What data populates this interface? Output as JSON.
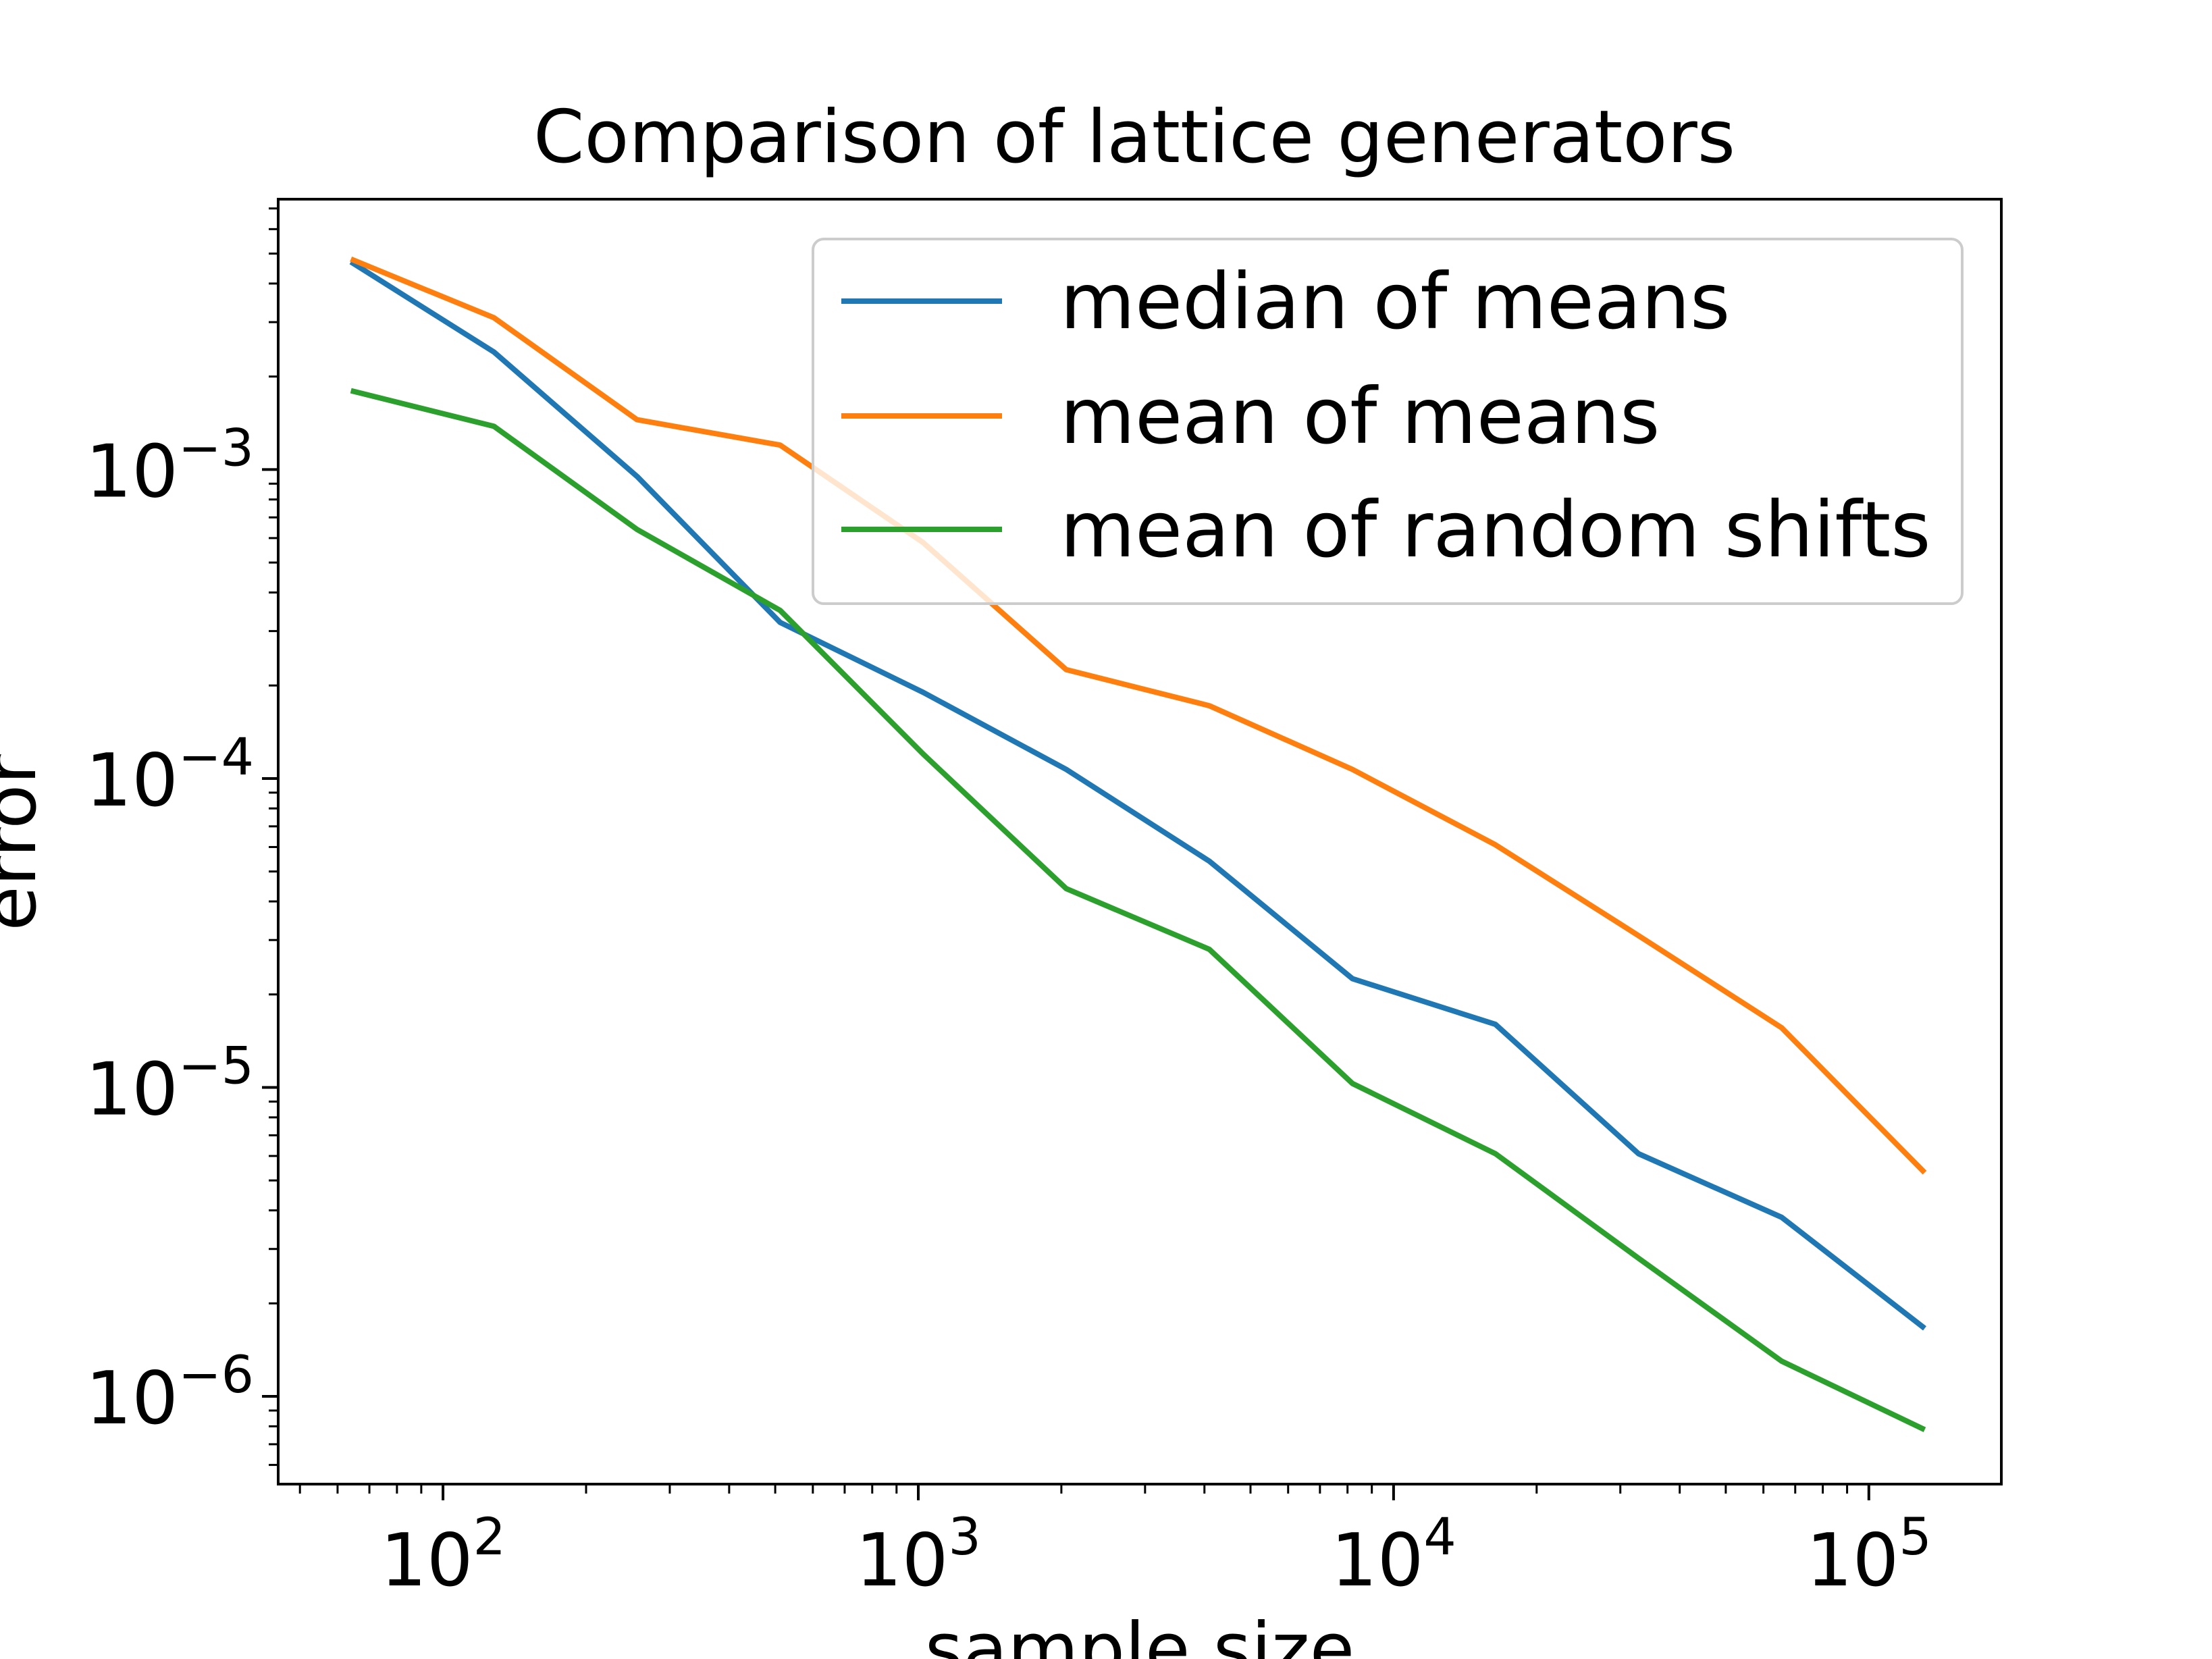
{
  "chart_data": {
    "type": "line",
    "title": "Comparison of lattice generators",
    "xlabel": "sample size",
    "ylabel": "error",
    "xscale": "log",
    "yscale": "log",
    "xlim": [
      45,
      190000
    ],
    "ylim": [
      5.2e-07,
      0.0075
    ],
    "grid": false,
    "legend_position": "upper right",
    "x_ticks": [
      {
        "value": 100,
        "base": "10",
        "exp": "2"
      },
      {
        "value": 1000,
        "base": "10",
        "exp": "3"
      },
      {
        "value": 10000,
        "base": "10",
        "exp": "4"
      },
      {
        "value": 100000,
        "base": "10",
        "exp": "5"
      }
    ],
    "y_ticks": [
      {
        "value": 1e-06,
        "base": "10",
        "exp": "−6"
      },
      {
        "value": 1e-05,
        "base": "10",
        "exp": "−5"
      },
      {
        "value": 0.0001,
        "base": "10",
        "exp": "−4"
      },
      {
        "value": 0.001,
        "base": "10",
        "exp": "−3"
      }
    ],
    "x": [
      64,
      128,
      256,
      512,
      1024,
      2048,
      4096,
      8192,
      16384,
      32768,
      65536,
      131072
    ],
    "series": [
      {
        "name": "median of means",
        "color": "#1f77b4",
        "values": [
          0.0047,
          0.0024,
          0.00095,
          0.00032,
          0.00019,
          0.000107,
          5.4e-05,
          2.25e-05,
          1.6e-05,
          6.1e-06,
          3.8e-06,
          1.66e-06
        ]
      },
      {
        "name": "mean of means",
        "color": "#ff7f0e",
        "values": [
          0.0048,
          0.0031,
          0.00145,
          0.0012,
          0.00058,
          0.000225,
          0.000172,
          0.000107,
          6.1e-05,
          3.1e-05,
          1.56e-05,
          5.3e-06
        ]
      },
      {
        "name": "mean of random shifts",
        "color": "#2ca02c",
        "values": [
          0.0018,
          0.00138,
          0.00064,
          0.00035,
          0.00012,
          4.4e-05,
          2.8e-05,
          1.03e-05,
          6.1e-06,
          2.8e-06,
          1.3e-06,
          7.8e-07
        ]
      }
    ]
  }
}
